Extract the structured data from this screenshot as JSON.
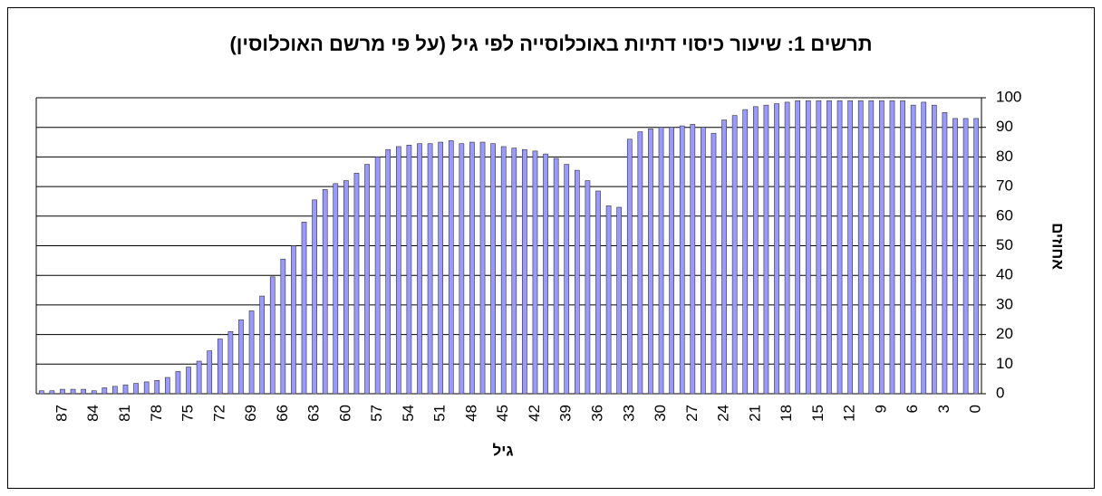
{
  "chart_data": {
    "type": "bar",
    "title": "תרשים 1: שיעור כיסוי דתיות באוכלוסייה לפי גיל (על פי מרשם האוכלוסין)",
    "x_label": "גיל",
    "y_label": "אחוזים",
    "categories": [
      null,
      null,
      87,
      null,
      null,
      84,
      null,
      null,
      81,
      null,
      null,
      78,
      null,
      null,
      75,
      null,
      null,
      72,
      null,
      null,
      69,
      null,
      null,
      66,
      null,
      null,
      63,
      null,
      null,
      60,
      null,
      null,
      57,
      null,
      null,
      54,
      null,
      null,
      51,
      null,
      null,
      48,
      null,
      null,
      45,
      null,
      null,
      42,
      null,
      null,
      39,
      null,
      null,
      36,
      null,
      null,
      33,
      null,
      null,
      30,
      null,
      null,
      27,
      null,
      null,
      24,
      null,
      null,
      21,
      null,
      null,
      18,
      null,
      null,
      15,
      null,
      null,
      12,
      null,
      null,
      9,
      null,
      null,
      6,
      null,
      null,
      3,
      null,
      null,
      0
    ],
    "values": [
      1,
      1,
      1.5,
      1.5,
      1.5,
      1,
      2,
      2.5,
      3,
      3.5,
      4,
      4.5,
      5.5,
      7.5,
      9,
      11,
      14.5,
      18.5,
      21,
      25,
      28,
      33,
      39.5,
      45.5,
      50,
      58,
      65.5,
      69,
      71,
      72,
      74.5,
      77.5,
      80,
      82.5,
      83.5,
      84,
      84.5,
      84.5,
      85,
      85.5,
      84.5,
      85,
      85,
      84.5,
      83.5,
      83,
      82.5,
      82,
      81,
      79.5,
      77.5,
      75.5,
      72,
      68.5,
      63.5,
      63,
      86,
      88.5,
      89.5,
      90,
      90,
      90.5,
      91,
      90,
      88,
      92.5,
      94,
      96,
      97,
      97.5,
      98,
      98.5,
      99,
      99,
      99,
      99,
      99,
      99,
      99,
      99,
      99,
      99,
      99,
      97.5,
      98.5,
      97.5,
      95,
      93,
      93,
      93
    ],
    "color": "#9999ff",
    "ylim": [
      0,
      100
    ],
    "yticks": [
      0,
      10,
      20,
      30,
      40,
      50,
      60,
      70,
      80,
      90,
      100
    ],
    "grid": true
  }
}
